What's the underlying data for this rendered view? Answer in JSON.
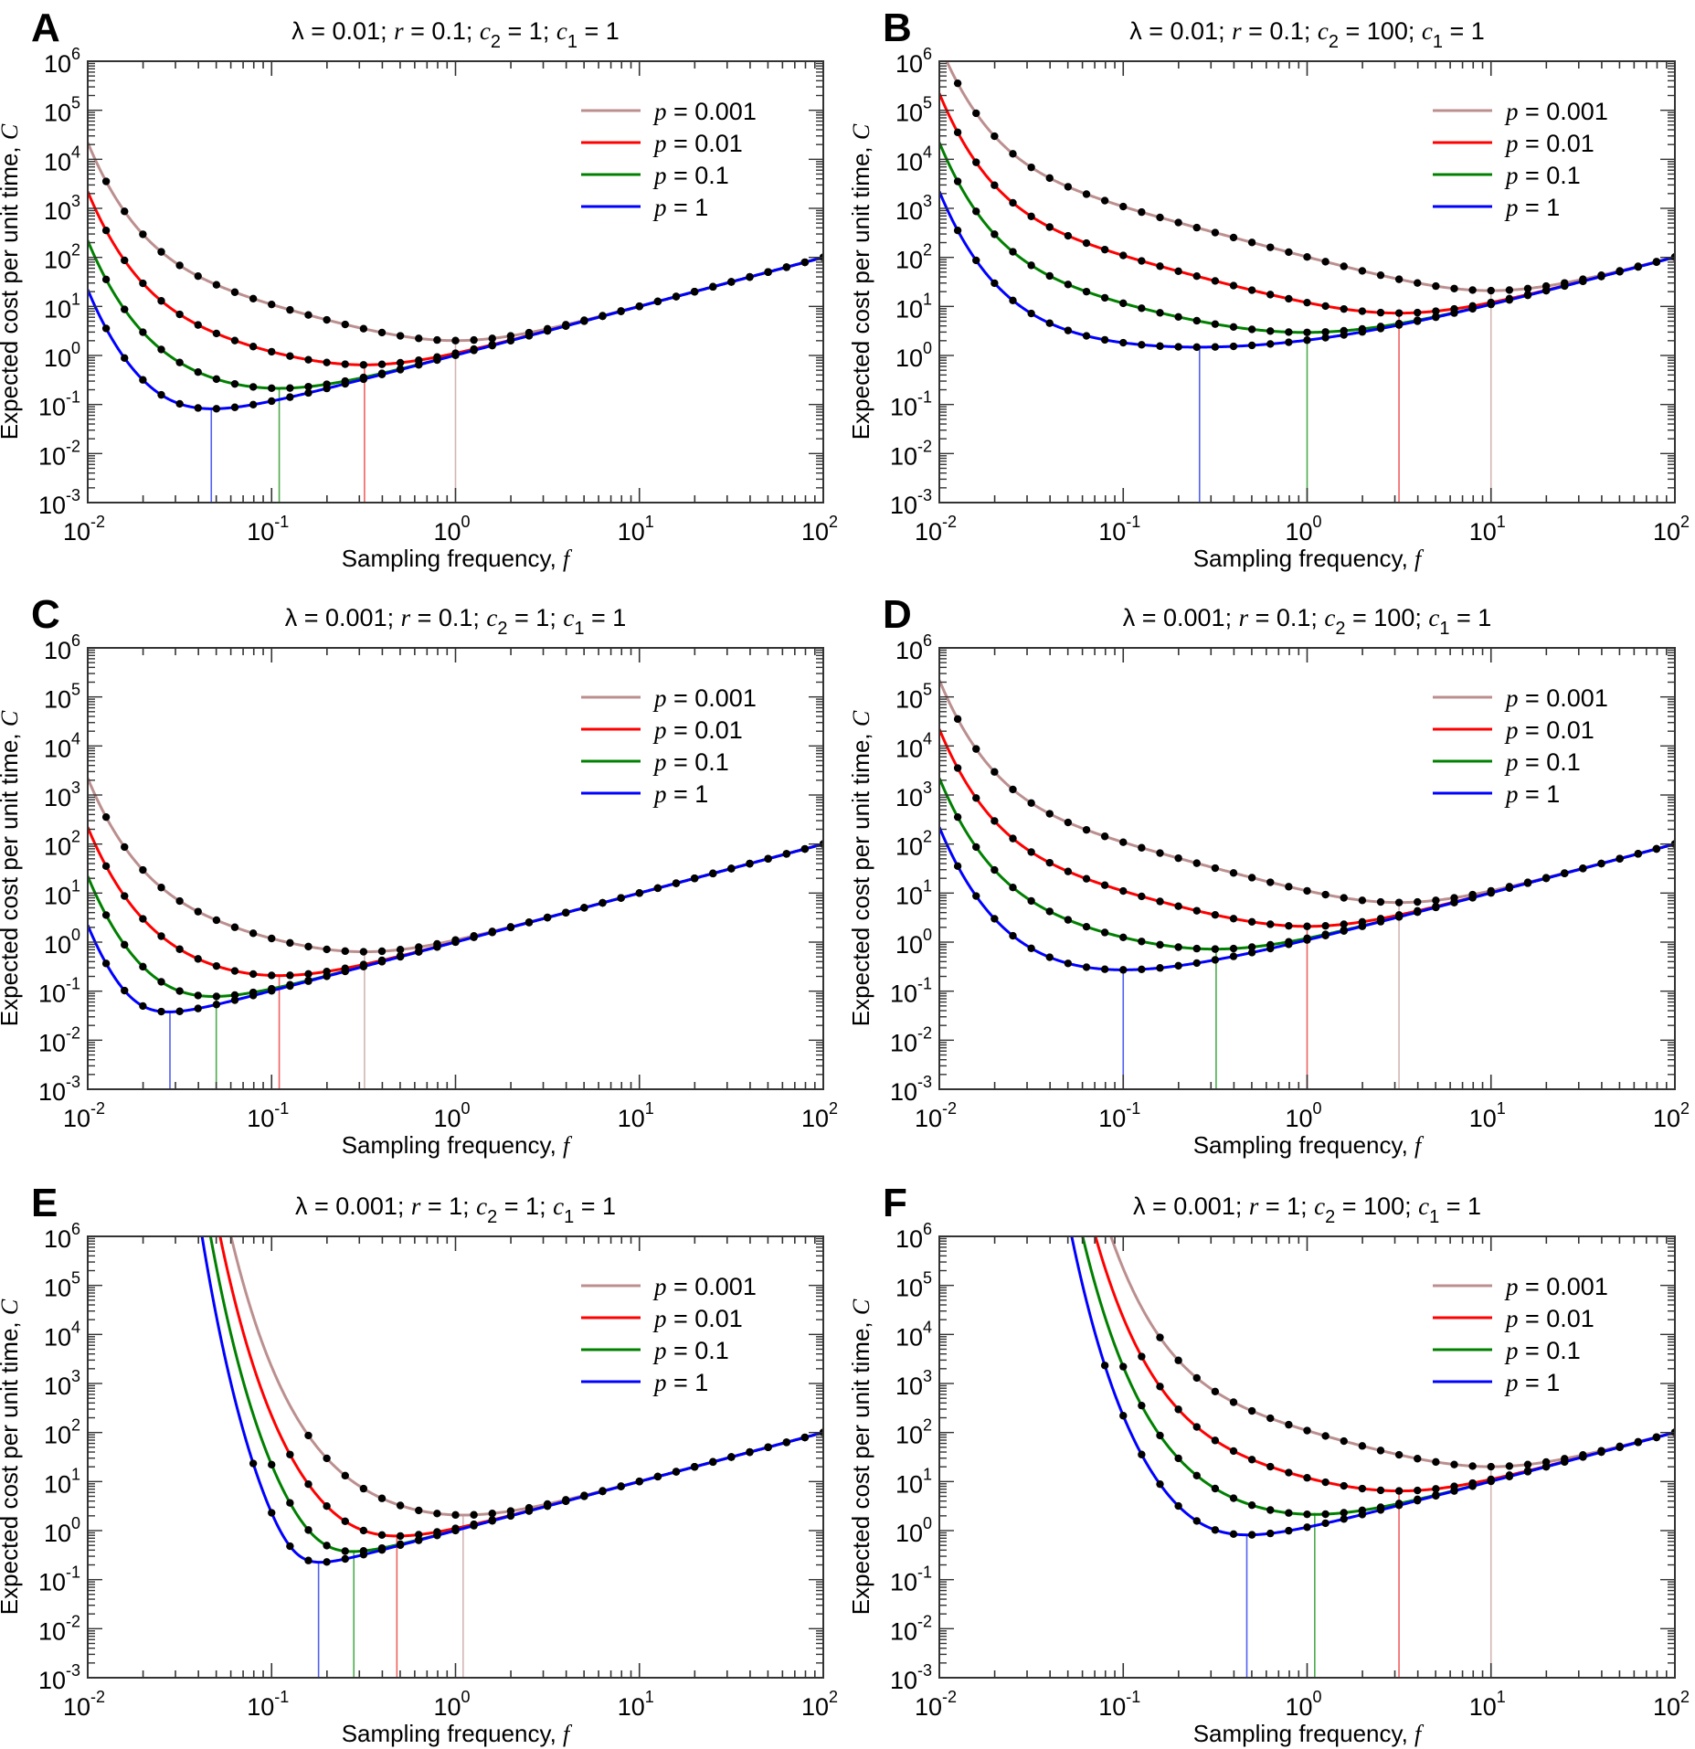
{
  "figure": {
    "x_axis_label": "Sampling frequency, ",
    "x_axis_label_var": "f",
    "y_axis_label": "Expected cost per unit time, ",
    "y_axis_label_var": "C"
  },
  "chart_data": [
    {
      "panel": "A",
      "type": "line",
      "title": "λ = 0.01;  r = 0.1;  c2 = 1;  c1 = 1",
      "params": {
        "lambda": 0.01,
        "r": 0.1,
        "c2": 1,
        "c1": 1
      },
      "xlabel": "Sampling frequency, f",
      "ylabel": "Expected cost per unit time, C",
      "xscale": "log",
      "yscale": "log",
      "xlim": [
        0.01,
        100
      ],
      "ylim": [
        0.001,
        1000000
      ],
      "x_ticks": [
        "10^-2",
        "10^-1",
        "10^0",
        "10^1",
        "10^2"
      ],
      "y_ticks": [
        "10^-3",
        "10^-2",
        "10^-1",
        "10^0",
        "10^1",
        "10^2",
        "10^3",
        "10^4",
        "10^5",
        "10^6"
      ],
      "legend_position": "top-right",
      "series": [
        {
          "name": "p = 0.001",
          "p": 0.001,
          "color": "#bc8f8f",
          "optimal_f": 1.0,
          "min_C": 2.0,
          "marker_start_log10f": -1.9,
          "value_at_f_0.01": 20000
        },
        {
          "name": "p = 0.01",
          "p": 0.01,
          "color": "#ff0000",
          "optimal_f": 0.32,
          "min_C": 0.63,
          "marker_start_log10f": -1.9,
          "value_at_f_0.01": 2100
        },
        {
          "name": "p = 0.1",
          "p": 0.1,
          "color": "#008000",
          "optimal_f": 0.11,
          "min_C": 0.21,
          "marker_start_log10f": -1.9,
          "value_at_f_0.01": 210
        },
        {
          "name": "p = 1",
          "p": 1,
          "color": "#0000ff",
          "optimal_f": 0.047,
          "min_C": 0.085,
          "marker_start_log10f": -1.9,
          "value_at_f_0.01": 21
        }
      ]
    },
    {
      "panel": "B",
      "type": "line",
      "title": "λ = 0.01;  r = 0.1;  c2 = 100;  c1 = 1",
      "params": {
        "lambda": 0.01,
        "r": 0.1,
        "c2": 100,
        "c1": 1
      },
      "xlabel": "Sampling frequency, f",
      "ylabel": "Expected cost per unit time, C",
      "xscale": "log",
      "yscale": "log",
      "xlim": [
        0.01,
        100
      ],
      "ylim": [
        0.001,
        1000000
      ],
      "x_ticks": [
        "10^-2",
        "10^-1",
        "10^0",
        "10^1",
        "10^2"
      ],
      "y_ticks": [
        "10^-3",
        "10^-2",
        "10^-1",
        "10^0",
        "10^1",
        "10^2",
        "10^3",
        "10^4",
        "10^5",
        "10^6"
      ],
      "legend_position": "top-right",
      "series": [
        {
          "name": "p = 0.001",
          "p": 0.001,
          "color": "#bc8f8f",
          "optimal_f": 10,
          "min_C": 21,
          "marker_start_log10f": -1.9,
          "value_at_f_0.01": 1000000
        },
        {
          "name": "p = 0.01",
          "p": 0.01,
          "color": "#ff0000",
          "optimal_f": 3.16,
          "min_C": 7.5,
          "marker_start_log10f": -1.9,
          "value_at_f_0.01": 220000
        },
        {
          "name": "p = 0.1",
          "p": 0.1,
          "color": "#008000",
          "optimal_f": 1.0,
          "min_C": 3.0,
          "marker_start_log10f": -1.9,
          "value_at_f_0.01": 22000
        },
        {
          "name": "p = 1",
          "p": 1,
          "color": "#0000ff",
          "optimal_f": 0.26,
          "min_C": 1.55,
          "marker_start_log10f": -1.9,
          "value_at_f_0.01": 2200
        }
      ]
    },
    {
      "panel": "C",
      "type": "line",
      "title": "λ = 0.001;  r = 0.1;  c2 = 1;  c1 = 1",
      "params": {
        "lambda": 0.001,
        "r": 0.1,
        "c2": 1,
        "c1": 1
      },
      "xlabel": "Sampling frequency, f",
      "ylabel": "Expected cost per unit time, C",
      "xscale": "log",
      "yscale": "log",
      "xlim": [
        0.01,
        100
      ],
      "ylim": [
        0.001,
        1000000
      ],
      "x_ticks": [
        "10^-2",
        "10^-1",
        "10^0",
        "10^1",
        "10^2"
      ],
      "y_ticks": [
        "10^-3",
        "10^-2",
        "10^-1",
        "10^0",
        "10^1",
        "10^2",
        "10^3",
        "10^4",
        "10^5",
        "10^6"
      ],
      "legend_position": "top-right",
      "series": [
        {
          "name": "p = 0.001",
          "p": 0.001,
          "color": "#bc8f8f",
          "optimal_f": 0.32,
          "min_C": 0.63,
          "marker_start_log10f": -1.9,
          "value_at_f_0.01": 2200
        },
        {
          "name": "p = 0.01",
          "p": 0.01,
          "color": "#ff0000",
          "optimal_f": 0.11,
          "min_C": 0.21,
          "marker_start_log10f": -1.9,
          "value_at_f_0.01": 220
        },
        {
          "name": "p = 0.1",
          "p": 0.1,
          "color": "#008000",
          "optimal_f": 0.05,
          "min_C": 0.08,
          "marker_start_log10f": -1.9,
          "value_at_f_0.01": 22
        },
        {
          "name": "p = 1",
          "p": 1,
          "color": "#0000ff",
          "optimal_f": 0.028,
          "min_C": 0.038,
          "marker_start_log10f": -1.9,
          "value_at_f_0.01": 2.2
        }
      ]
    },
    {
      "panel": "D",
      "type": "line",
      "title": "λ = 0.001;  r = 0.1;  c2 = 100;  c1 = 1",
      "params": {
        "lambda": 0.001,
        "r": 0.1,
        "c2": 100,
        "c1": 1
      },
      "xlabel": "Sampling frequency, f",
      "ylabel": "Expected cost per unit time, C",
      "xscale": "log",
      "yscale": "log",
      "xlim": [
        0.01,
        100
      ],
      "ylim": [
        0.001,
        1000000
      ],
      "x_ticks": [
        "10^-2",
        "10^-1",
        "10^0",
        "10^1",
        "10^2"
      ],
      "y_ticks": [
        "10^-3",
        "10^-2",
        "10^-1",
        "10^0",
        "10^1",
        "10^2",
        "10^3",
        "10^4",
        "10^5",
        "10^6"
      ],
      "legend_position": "top-right",
      "series": [
        {
          "name": "p = 0.001",
          "p": 0.001,
          "color": "#bc8f8f",
          "optimal_f": 3.16,
          "min_C": 6.7,
          "marker_start_log10f": -1.9,
          "value_at_f_0.01": 220000
        },
        {
          "name": "p = 0.01",
          "p": 0.01,
          "color": "#ff0000",
          "optimal_f": 1.0,
          "min_C": 2.1,
          "marker_start_log10f": -1.9,
          "value_at_f_0.01": 22000
        },
        {
          "name": "p = 0.1",
          "p": 0.1,
          "color": "#008000",
          "optimal_f": 0.32,
          "min_C": 0.78,
          "marker_start_log10f": -1.9,
          "value_at_f_0.01": 2200
        },
        {
          "name": "p = 1",
          "p": 1,
          "color": "#0000ff",
          "optimal_f": 0.1,
          "min_C": 0.27,
          "marker_start_log10f": -1.9,
          "value_at_f_0.01": 220
        }
      ]
    },
    {
      "panel": "E",
      "type": "line",
      "title": "λ = 0.001;  r = 1;  c2 = 1;  c1 = 1",
      "params": {
        "lambda": 0.001,
        "r": 1,
        "c2": 1,
        "c1": 1
      },
      "xlabel": "Sampling frequency, f",
      "ylabel": "Expected cost per unit time, C",
      "xscale": "log",
      "yscale": "log",
      "xlim": [
        0.01,
        100
      ],
      "ylim": [
        0.001,
        1000000
      ],
      "x_ticks": [
        "10^-2",
        "10^-1",
        "10^0",
        "10^1",
        "10^2"
      ],
      "y_ticks": [
        "10^-3",
        "10^-2",
        "10^-1",
        "10^0",
        "10^1",
        "10^2",
        "10^3",
        "10^4",
        "10^5",
        "10^6"
      ],
      "legend_position": "top-right",
      "series": [
        {
          "name": "p = 0.001",
          "p": 0.001,
          "color": "#bc8f8f",
          "optimal_f": 1.1,
          "min_C": 2.1,
          "marker_start_log10f": -0.8
        },
        {
          "name": "p = 0.01",
          "p": 0.01,
          "color": "#ff0000",
          "optimal_f": 0.48,
          "min_C": 0.8,
          "marker_start_log10f": -0.9
        },
        {
          "name": "p = 0.1",
          "p": 0.1,
          "color": "#008000",
          "optimal_f": 0.28,
          "min_C": 0.4,
          "marker_start_log10f": -1.0
        },
        {
          "name": "p = 1",
          "p": 1,
          "color": "#0000ff",
          "optimal_f": 0.18,
          "min_C": 0.23,
          "marker_start_log10f": -1.1
        }
      ]
    },
    {
      "panel": "F",
      "type": "line",
      "title": "λ = 0.001;  r = 1;  c2 = 100;  c1 = 1",
      "params": {
        "lambda": 0.001,
        "r": 1,
        "c2": 100,
        "c1": 1
      },
      "xlabel": "Sampling frequency, f",
      "ylabel": "Expected cost per unit time, C",
      "xscale": "log",
      "yscale": "log",
      "xlim": [
        0.01,
        100
      ],
      "ylim": [
        0.001,
        1000000
      ],
      "x_ticks": [
        "10^-2",
        "10^-1",
        "10^0",
        "10^1",
        "10^2"
      ],
      "y_ticks": [
        "10^-3",
        "10^-2",
        "10^-1",
        "10^0",
        "10^1",
        "10^2",
        "10^3",
        "10^4",
        "10^5",
        "10^6"
      ],
      "legend_position": "top-right",
      "series": [
        {
          "name": "p = 0.001",
          "p": 0.001,
          "color": "#bc8f8f",
          "optimal_f": 10,
          "min_C": 21,
          "marker_start_log10f": -0.8
        },
        {
          "name": "p = 0.01",
          "p": 0.01,
          "color": "#ff0000",
          "optimal_f": 3.16,
          "min_C": 6.9,
          "marker_start_log10f": -0.9
        },
        {
          "name": "p = 0.1",
          "p": 0.1,
          "color": "#008000",
          "optimal_f": 1.1,
          "min_C": 2.3,
          "marker_start_log10f": -1.0
        },
        {
          "name": "p = 1",
          "p": 1,
          "color": "#0000ff",
          "optimal_f": 0.47,
          "min_C": 0.85,
          "marker_start_log10f": -1.1
        }
      ]
    }
  ],
  "marker_spacing_log10f": 0.1,
  "marker_color": "#000000",
  "optimum_line_colors": {
    "p = 0.001": "#d4b4b4",
    "p = 0.01": "#f06060",
    "p = 0.1": "#4caa4c",
    "p = 1": "#5060f0"
  }
}
